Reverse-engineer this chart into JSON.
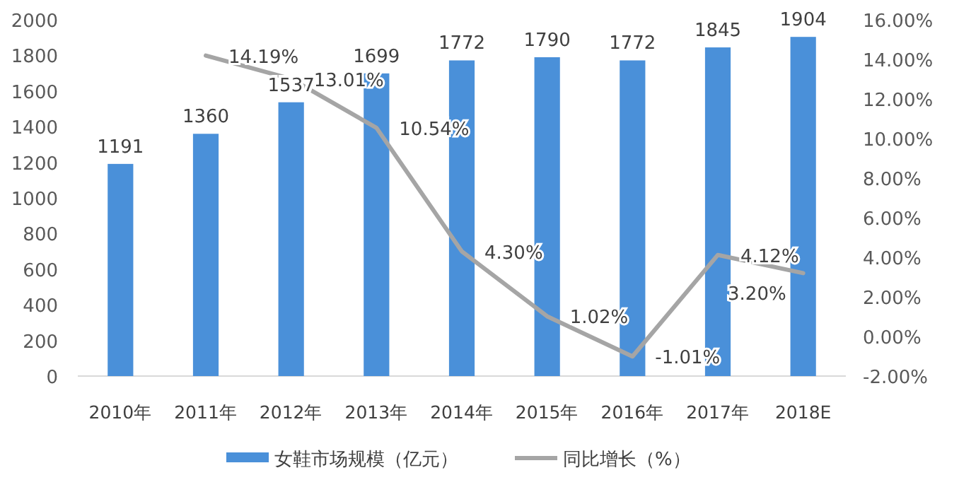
{
  "chart_data": {
    "type": "bar",
    "categories": [
      "2010年",
      "2011年",
      "2012年",
      "2013年",
      "2014年",
      "2015年",
      "2016年",
      "2017年",
      "2018E"
    ],
    "series": [
      {
        "name": "女鞋市场规模（亿元）",
        "type": "bar",
        "color": "#4a90d9",
        "values": [
          1191,
          1360,
          1537,
          1699,
          1772,
          1790,
          1772,
          1845,
          1904
        ],
        "value_labels": [
          "1191",
          "1360",
          "1537",
          "1699",
          "1772",
          "1790",
          "1772",
          "1845",
          "1904"
        ]
      },
      {
        "name": "同比增长（%）",
        "type": "line",
        "axis": "y2",
        "color": "#a5a5a5",
        "values": [
          null,
          14.19,
          13.01,
          10.54,
          4.3,
          1.02,
          -1.01,
          4.12,
          3.2
        ],
        "value_labels": [
          null,
          "14.19%",
          "13.01%",
          "10.54%",
          "4.30%",
          "1.02%",
          "-1.01%",
          "4.12%",
          "3.20%"
        ]
      }
    ],
    "ylim": [
      0,
      2000
    ],
    "yticks": [
      0,
      200,
      400,
      600,
      800,
      1000,
      1200,
      1400,
      1600,
      1800,
      2000
    ],
    "y2lim": [
      -2,
      16
    ],
    "y2ticks": [
      {
        "value": -2,
        "label": "-2.00%"
      },
      {
        "value": 0,
        "label": "0.00%"
      },
      {
        "value": 2,
        "label": "2.00%"
      },
      {
        "value": 4,
        "label": "4.00%"
      },
      {
        "value": 6,
        "label": "6.00%"
      },
      {
        "value": 8,
        "label": "8.00%"
      },
      {
        "value": 10,
        "label": "10.00%"
      },
      {
        "value": 12,
        "label": "12.00%"
      },
      {
        "value": 14,
        "label": "14.00%"
      },
      {
        "value": 16,
        "label": "16.00%"
      }
    ],
    "grid": false,
    "legend": "bottom",
    "marker": "none",
    "line_style": "solid"
  }
}
